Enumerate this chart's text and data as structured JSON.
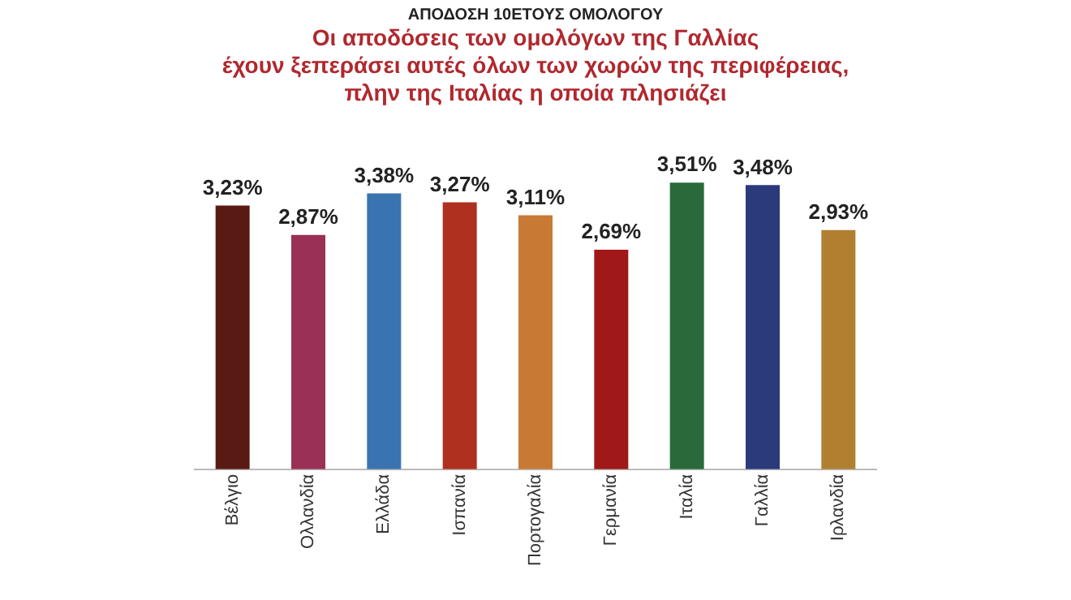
{
  "chart_data": {
    "type": "bar",
    "subtitle": "ΑΠΟΔΟΣΗ 10ΕΤΟΥΣ ΟΜΟΛΟΓΟΥ",
    "title": "Οι αποδόσεις των ομολόγων της Γαλλίας\nέχουν ξεπεράσει αυτές όλων των χωρών της περιφέρειας,\nπλην της Ιταλίας η οποία πλησιάζει",
    "categories": [
      "Βέλγιο",
      "Ολλανδία",
      "Ελλάδα",
      "Ισπανία",
      "Πορτογαλία",
      "Γερμανία",
      "Ιταλία",
      "Γαλλία",
      "Ιρλανδία"
    ],
    "values": [
      3.23,
      2.87,
      3.38,
      3.27,
      3.11,
      2.69,
      3.51,
      3.48,
      2.93
    ],
    "value_labels": [
      "3,23%",
      "2,87%",
      "3,38%",
      "3,27%",
      "3,11%",
      "2,69%",
      "3,51%",
      "3,48%",
      "2,93%"
    ],
    "colors": [
      "#5a1a14",
      "#9a3056",
      "#3a74b0",
      "#b03020",
      "#c87a35",
      "#a01818",
      "#2a6a3a",
      "#2a3a7a",
      "#b08030"
    ],
    "tick_labels": "x",
    "grid": false,
    "legend": false
  }
}
